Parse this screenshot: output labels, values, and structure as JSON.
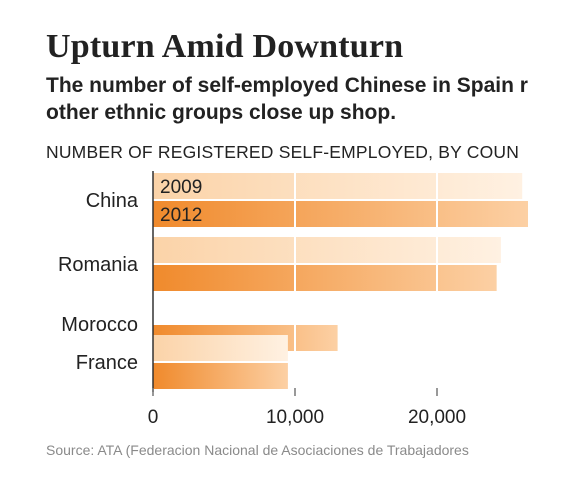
{
  "title": "Upturn Amid Downturn",
  "subtitle_lines": [
    "The number of self-employed Chinese in Spain r",
    "other ethnic groups close up shop."
  ],
  "chart_header": "NUMBER OF REGISTERED SELF-EMPLOYED, BY COUN",
  "source": "Source: ATA (Federacion Nacional de Asociaciones de Trabajadores",
  "colors": {
    "bar_2009": "#fbd3a8",
    "bar_2012": "#f08a2c",
    "plot_bg": "#fde4c8",
    "grid": "#ffffff"
  },
  "chart_data": {
    "type": "bar",
    "orientation": "horizontal",
    "categories": [
      "China",
      "Romania",
      "Morocco",
      "France"
    ],
    "series": [
      {
        "name": "2009",
        "values": [
          26000,
          24500,
          null,
          9500
        ]
      },
      {
        "name": "2012",
        "values": [
          27500,
          24200,
          13000,
          9500
        ]
      }
    ],
    "xticks": [
      "0",
      "10,000",
      "20,000"
    ],
    "xlim": [
      0,
      26500
    ],
    "grid": true
  }
}
